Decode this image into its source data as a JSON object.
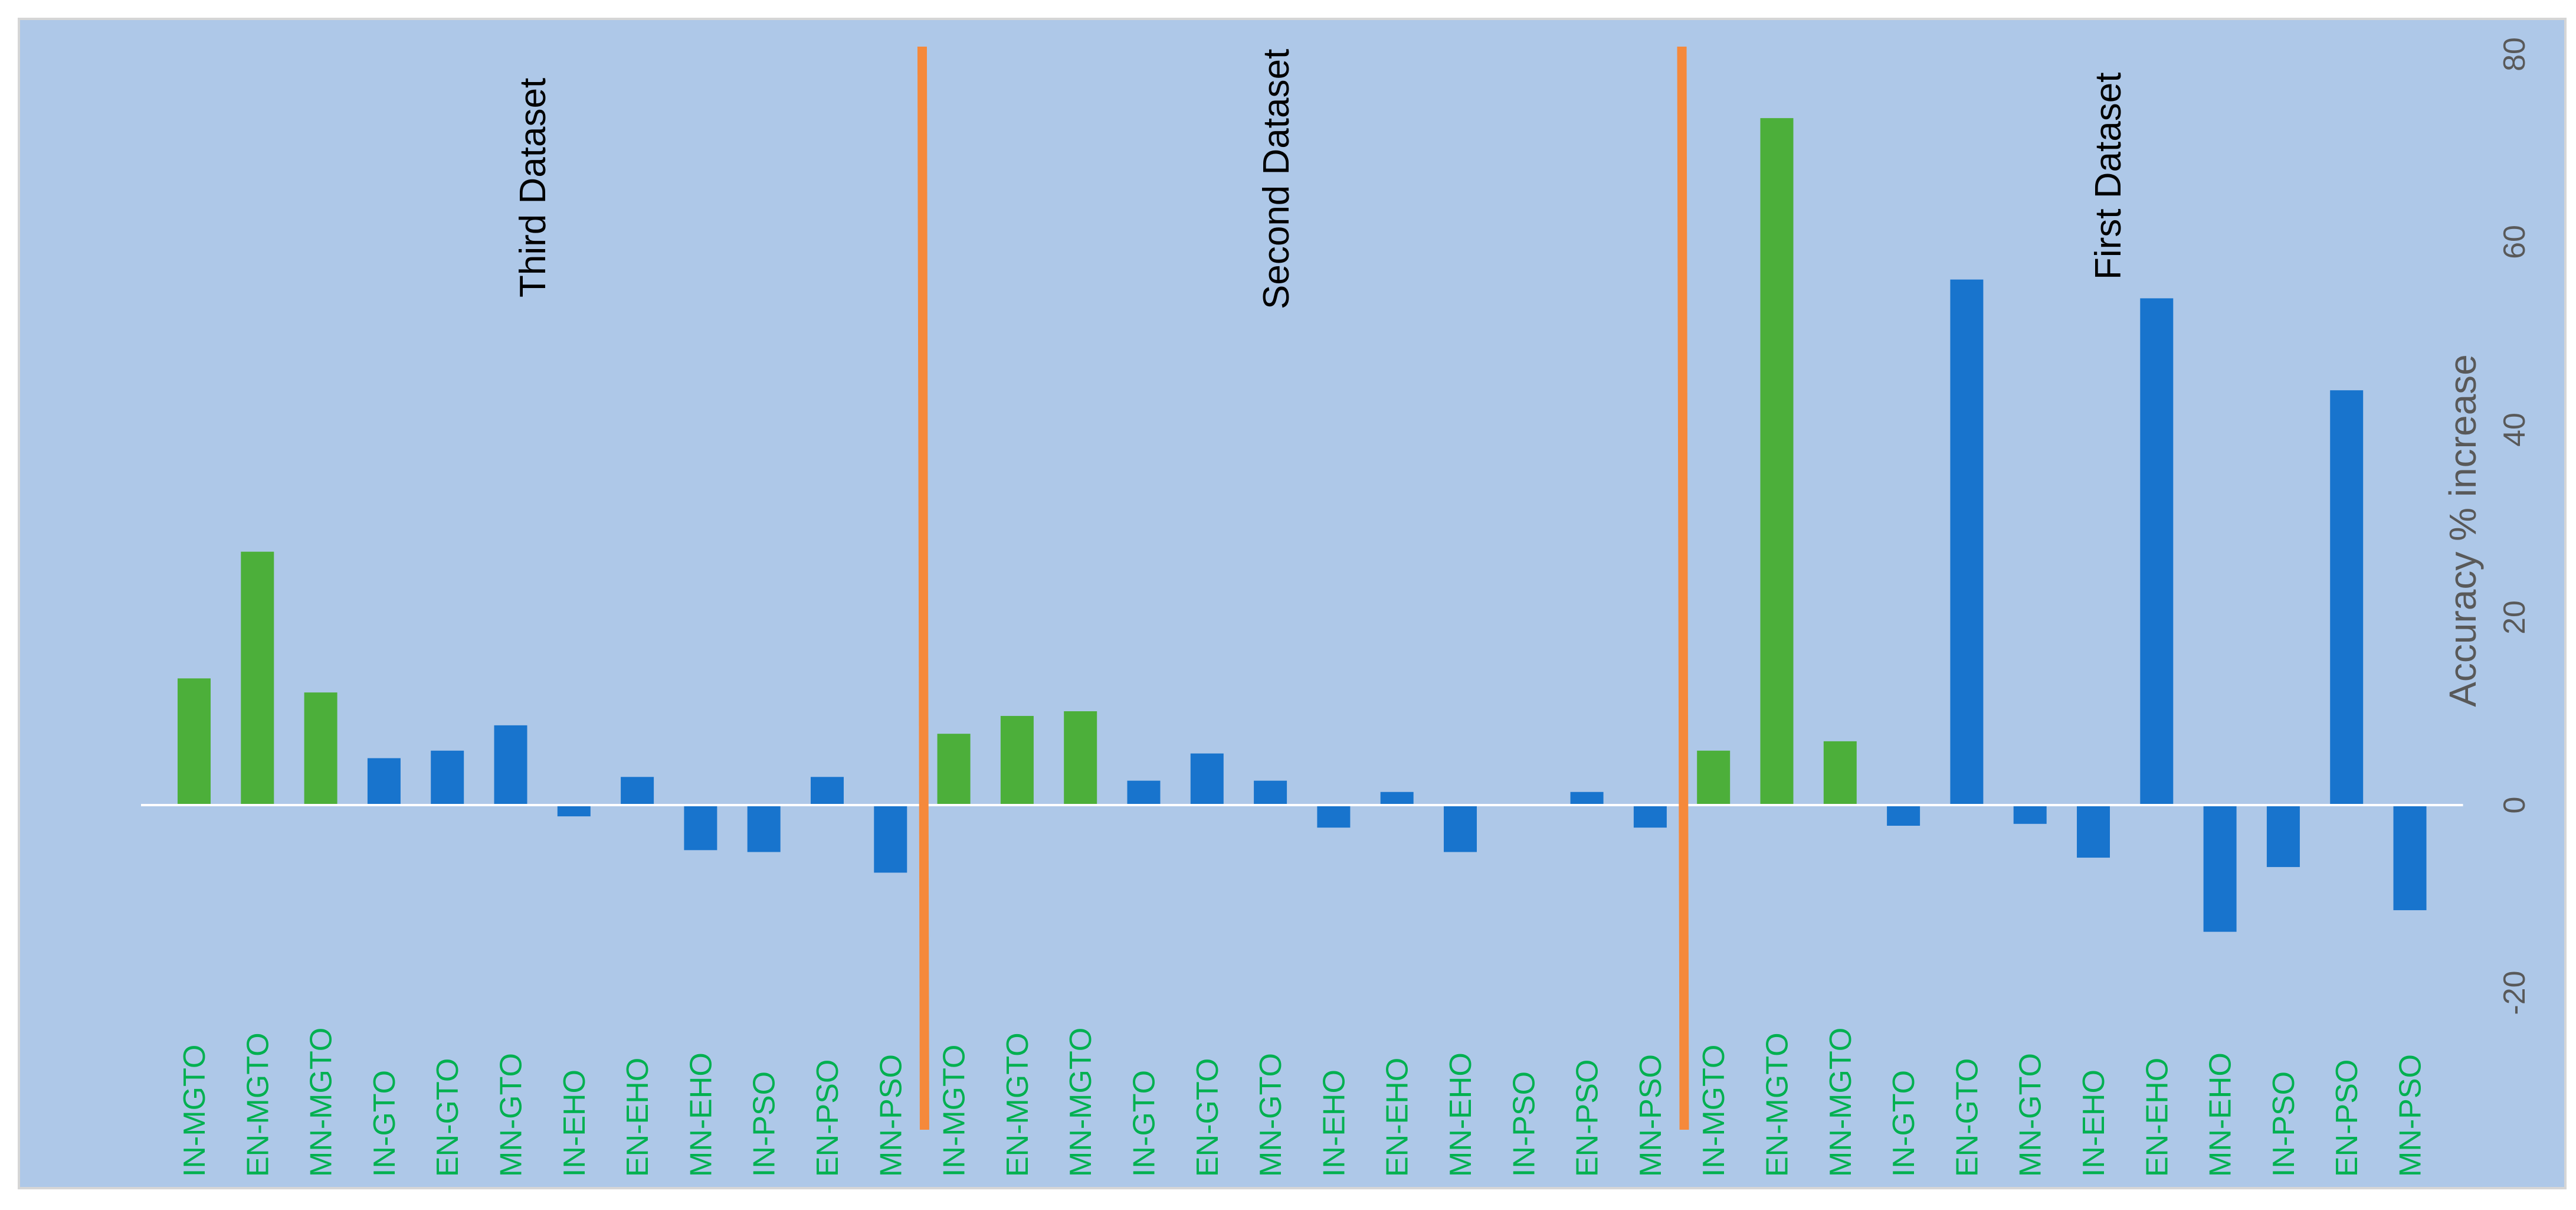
{
  "chart_data": {
    "type": "bar",
    "ylabel": "Accuracy % increase",
    "ylim": [
      -20,
      80
    ],
    "yticks": [
      -20,
      0,
      20,
      40,
      60,
      80
    ],
    "grid": false,
    "orientation": "rotated-90",
    "colors": {
      "mgto": "#4caf3a",
      "other": "#1874cd",
      "divider": "#f5893b",
      "label": "#00b050",
      "background": "#aec8e8"
    },
    "sections": [
      {
        "name": "Third Dataset",
        "categories": [
          "IN-MGTO",
          "EN-MGTO",
          "MN-MGTO",
          "IN-GTO",
          "EN-GTO",
          "MN-GTO",
          "IN-EHO",
          "EN-EHO",
          "MN-EHO",
          "IN-PSO",
          "EN-PSO",
          "MN-PSO"
        ],
        "values": [
          13.5,
          27,
          12,
          5,
          5.8,
          8.5,
          -1.2,
          3,
          -4.8,
          -5,
          3,
          -7.2
        ]
      },
      {
        "name": "Second Dataset",
        "categories": [
          "IN-MGTO",
          "EN-MGTO",
          "MN-MGTO",
          "IN-GTO",
          "EN-GTO",
          "MN-GTO",
          "IN-EHO",
          "EN-EHO",
          "MN-EHO",
          "IN-PSO",
          "EN-PSO",
          "MN-PSO"
        ],
        "values": [
          7.6,
          9.5,
          10,
          2.6,
          5.5,
          2.6,
          -2.4,
          1.4,
          -5,
          0,
          1.4,
          -2.4
        ]
      },
      {
        "name": "First Dataset",
        "categories": [
          "IN-MGTO",
          "EN-MGTO",
          "MN-MGTO",
          "IN-GTO",
          "EN-GTO",
          "MN-GTO",
          "IN-EHO",
          "EN-EHO",
          "MN-EHO",
          "IN-PSO",
          "EN-PSO",
          "MN-PSO"
        ],
        "values": [
          5.8,
          73.2,
          6.8,
          -2.2,
          56,
          -2,
          -5.6,
          54,
          -13.5,
          -6.6,
          44.2,
          -11.2
        ]
      }
    ]
  }
}
